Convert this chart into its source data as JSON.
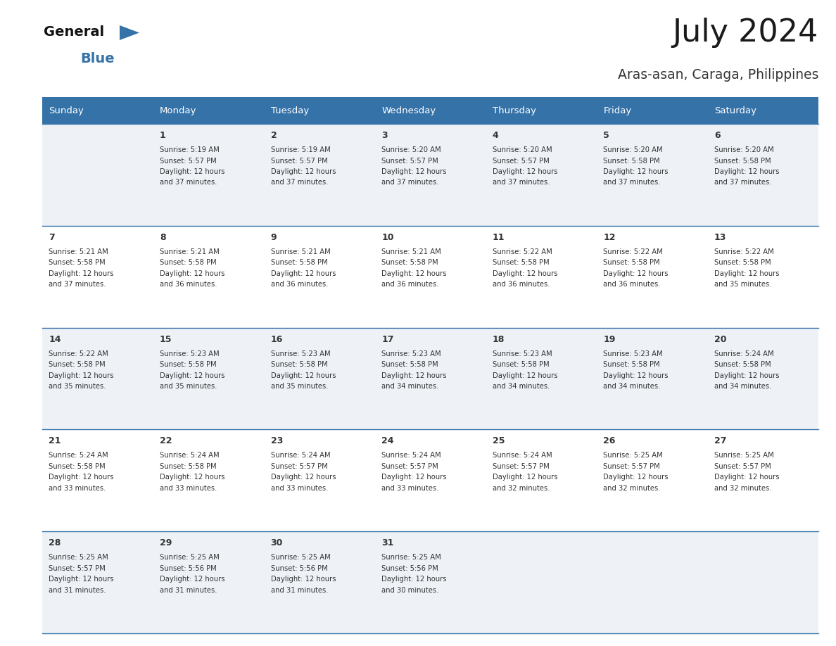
{
  "title": "July 2024",
  "subtitle": "Aras-asan, Caraga, Philippines",
  "header_color": "#3572a8",
  "header_text_color": "#ffffff",
  "day_names": [
    "Sunday",
    "Monday",
    "Tuesday",
    "Wednesday",
    "Thursday",
    "Friday",
    "Saturday"
  ],
  "bg_color": "#ffffff",
  "row_color_odd": "#eef2f7",
  "row_color_even": "#ffffff",
  "cell_text_color": "#333333",
  "border_color": "#3572a8",
  "logo_general_color": "#111111",
  "logo_blue_color": "#3572a8",
  "logo_triangle_color": "#3572a8",
  "calendar": [
    [
      {
        "day": "",
        "sunrise": "",
        "sunset": "",
        "daylight": ""
      },
      {
        "day": "1",
        "sunrise": "5:19 AM",
        "sunset": "5:57 PM",
        "daylight": "12 hours and 37 minutes."
      },
      {
        "day": "2",
        "sunrise": "5:19 AM",
        "sunset": "5:57 PM",
        "daylight": "12 hours and 37 minutes."
      },
      {
        "day": "3",
        "sunrise": "5:20 AM",
        "sunset": "5:57 PM",
        "daylight": "12 hours and 37 minutes."
      },
      {
        "day": "4",
        "sunrise": "5:20 AM",
        "sunset": "5:57 PM",
        "daylight": "12 hours and 37 minutes."
      },
      {
        "day": "5",
        "sunrise": "5:20 AM",
        "sunset": "5:58 PM",
        "daylight": "12 hours and 37 minutes."
      },
      {
        "day": "6",
        "sunrise": "5:20 AM",
        "sunset": "5:58 PM",
        "daylight": "12 hours and 37 minutes."
      }
    ],
    [
      {
        "day": "7",
        "sunrise": "5:21 AM",
        "sunset": "5:58 PM",
        "daylight": "12 hours and 37 minutes."
      },
      {
        "day": "8",
        "sunrise": "5:21 AM",
        "sunset": "5:58 PM",
        "daylight": "12 hours and 36 minutes."
      },
      {
        "day": "9",
        "sunrise": "5:21 AM",
        "sunset": "5:58 PM",
        "daylight": "12 hours and 36 minutes."
      },
      {
        "day": "10",
        "sunrise": "5:21 AM",
        "sunset": "5:58 PM",
        "daylight": "12 hours and 36 minutes."
      },
      {
        "day": "11",
        "sunrise": "5:22 AM",
        "sunset": "5:58 PM",
        "daylight": "12 hours and 36 minutes."
      },
      {
        "day": "12",
        "sunrise": "5:22 AM",
        "sunset": "5:58 PM",
        "daylight": "12 hours and 36 minutes."
      },
      {
        "day": "13",
        "sunrise": "5:22 AM",
        "sunset": "5:58 PM",
        "daylight": "12 hours and 35 minutes."
      }
    ],
    [
      {
        "day": "14",
        "sunrise": "5:22 AM",
        "sunset": "5:58 PM",
        "daylight": "12 hours and 35 minutes."
      },
      {
        "day": "15",
        "sunrise": "5:23 AM",
        "sunset": "5:58 PM",
        "daylight": "12 hours and 35 minutes."
      },
      {
        "day": "16",
        "sunrise": "5:23 AM",
        "sunset": "5:58 PM",
        "daylight": "12 hours and 35 minutes."
      },
      {
        "day": "17",
        "sunrise": "5:23 AM",
        "sunset": "5:58 PM",
        "daylight": "12 hours and 34 minutes."
      },
      {
        "day": "18",
        "sunrise": "5:23 AM",
        "sunset": "5:58 PM",
        "daylight": "12 hours and 34 minutes."
      },
      {
        "day": "19",
        "sunrise": "5:23 AM",
        "sunset": "5:58 PM",
        "daylight": "12 hours and 34 minutes."
      },
      {
        "day": "20",
        "sunrise": "5:24 AM",
        "sunset": "5:58 PM",
        "daylight": "12 hours and 34 minutes."
      }
    ],
    [
      {
        "day": "21",
        "sunrise": "5:24 AM",
        "sunset": "5:58 PM",
        "daylight": "12 hours and 33 minutes."
      },
      {
        "day": "22",
        "sunrise": "5:24 AM",
        "sunset": "5:58 PM",
        "daylight": "12 hours and 33 minutes."
      },
      {
        "day": "23",
        "sunrise": "5:24 AM",
        "sunset": "5:57 PM",
        "daylight": "12 hours and 33 minutes."
      },
      {
        "day": "24",
        "sunrise": "5:24 AM",
        "sunset": "5:57 PM",
        "daylight": "12 hours and 33 minutes."
      },
      {
        "day": "25",
        "sunrise": "5:24 AM",
        "sunset": "5:57 PM",
        "daylight": "12 hours and 32 minutes."
      },
      {
        "day": "26",
        "sunrise": "5:25 AM",
        "sunset": "5:57 PM",
        "daylight": "12 hours and 32 minutes."
      },
      {
        "day": "27",
        "sunrise": "5:25 AM",
        "sunset": "5:57 PM",
        "daylight": "12 hours and 32 minutes."
      }
    ],
    [
      {
        "day": "28",
        "sunrise": "5:25 AM",
        "sunset": "5:57 PM",
        "daylight": "12 hours and 31 minutes."
      },
      {
        "day": "29",
        "sunrise": "5:25 AM",
        "sunset": "5:56 PM",
        "daylight": "12 hours and 31 minutes."
      },
      {
        "day": "30",
        "sunrise": "5:25 AM",
        "sunset": "5:56 PM",
        "daylight": "12 hours and 31 minutes."
      },
      {
        "day": "31",
        "sunrise": "5:25 AM",
        "sunset": "5:56 PM",
        "daylight": "12 hours and 30 minutes."
      },
      {
        "day": "",
        "sunrise": "",
        "sunset": "",
        "daylight": ""
      },
      {
        "day": "",
        "sunrise": "",
        "sunset": "",
        "daylight": ""
      },
      {
        "day": "",
        "sunrise": "",
        "sunset": "",
        "daylight": ""
      }
    ]
  ]
}
